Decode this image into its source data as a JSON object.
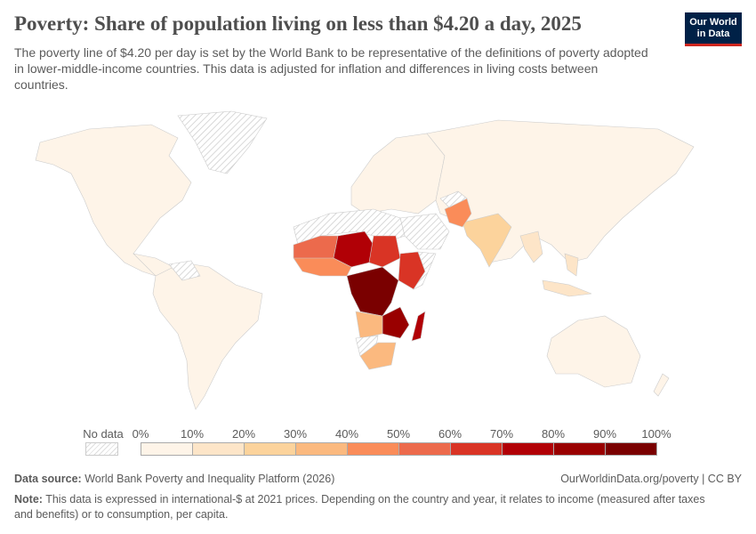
{
  "header": {
    "title": "Poverty: Share of population living on less than $4.20 a day, 2025",
    "subtitle": "The poverty line of $4.20 per day is set by the World Bank to be representative of the definitions of poverty adopted in lower-middle-income countries. This data is adjusted for inflation and differences in living costs between countries.",
    "logo": "Our World in Data"
  },
  "legend": {
    "no_data_label": "No data",
    "ticks": [
      "0%",
      "10%",
      "20%",
      "30%",
      "40%",
      "50%",
      "60%",
      "70%",
      "80%",
      "90%",
      "100%"
    ],
    "bins": [
      {
        "range": "0-10%",
        "color": "#fef4e8"
      },
      {
        "range": "10-20%",
        "color": "#fde5c8"
      },
      {
        "range": "20-30%",
        "color": "#fcd39c"
      },
      {
        "range": "30-40%",
        "color": "#fbb97f"
      },
      {
        "range": "40-50%",
        "color": "#fa8c59"
      },
      {
        "range": "50-60%",
        "color": "#ec6a4c"
      },
      {
        "range": "60-70%",
        "color": "#d93425"
      },
      {
        "range": "70-80%",
        "color": "#b10006"
      },
      {
        "range": "80-90%",
        "color": "#990000"
      },
      {
        "range": "90-100%",
        "color": "#7a0000"
      }
    ]
  },
  "footer": {
    "source_label": "Data source:",
    "source": "World Bank Poverty and Inequality Platform (2026)",
    "link": "OurWorldinData.org/poverty | CC BY",
    "note_label": "Note:",
    "note": "This data is expressed in international-$ at 2021 prices. Depending on the country and year, it relates to income (measured after taxes and benefits) or to consumption, per capita."
  }
}
